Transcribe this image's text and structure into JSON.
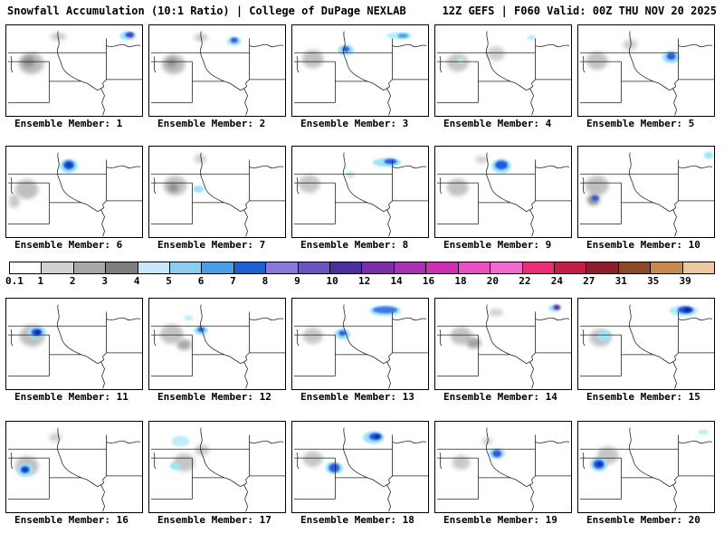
{
  "header": {
    "left": "Snowfall Accumulation (10:1 Ratio) | College of DuPage NEXLAB",
    "right": "12Z GEFS | F060 Valid: 00Z THU NOV 20 2025"
  },
  "colorbar": {
    "values": [
      "0.1",
      "1",
      "2",
      "3",
      "4",
      "5",
      "6",
      "7",
      "8",
      "9",
      "10",
      "12",
      "14",
      "16",
      "18",
      "20",
      "22",
      "24",
      "27",
      "31",
      "35",
      "39"
    ],
    "colors": [
      "#ffffff",
      "#d2d2d2",
      "#a8a8a8",
      "#7e7e7e",
      "#c8e8fa",
      "#8cccf0",
      "#4a9ee6",
      "#1e5fd2",
      "#8878d8",
      "#6a55c0",
      "#4b2f9e",
      "#7a2fa8",
      "#a832b4",
      "#cc2fb0",
      "#e84fc0",
      "#ef6ad0",
      "#e8307a",
      "#c21f48",
      "#8f1f2e",
      "#8a4a2a",
      "#c98a50",
      "#ecc9a0"
    ]
  },
  "panels": [
    {
      "label": "Ensemble Member: 1",
      "blobs": [
        [
          28,
          42,
          14,
          12,
          "#bcbcbc",
          "s"
        ],
        [
          25,
          40,
          7,
          6,
          "#8f8f8f",
          "s"
        ],
        [
          58,
          12,
          9,
          4,
          "#c8c8c8",
          "s"
        ],
        [
          136,
          11,
          9,
          5,
          "#9fe4f6",
          "t"
        ],
        [
          138,
          10,
          5,
          3,
          "#2e55e6",
          "t"
        ],
        [
          139,
          10,
          2.5,
          2,
          "#6d2fa8",
          "t"
        ]
      ]
    },
    {
      "label": "Ensemble Member: 2",
      "blobs": [
        [
          27,
          43,
          13,
          11,
          "#bcbcbc",
          "s"
        ],
        [
          25,
          41,
          6,
          5,
          "#909090",
          "s"
        ],
        [
          58,
          13,
          8,
          4,
          "#c8c8c8",
          "s"
        ],
        [
          95,
          17,
          8,
          5,
          "#9fe4f6",
          "t"
        ],
        [
          95,
          16,
          4,
          3,
          "#2e55e6",
          "t"
        ]
      ]
    },
    {
      "label": "Ensemble Member: 3",
      "blobs": [
        [
          23,
          37,
          12,
          10,
          "#c0c0c0",
          "s"
        ],
        [
          60,
          27,
          9,
          6,
          "#9fe4f6",
          "t"
        ],
        [
          60,
          26,
          4,
          3,
          "#2e55e6",
          "t"
        ],
        [
          120,
          11,
          14,
          4,
          "#b4ecf8",
          "t"
        ],
        [
          124,
          11,
          6,
          2.5,
          "#4a9ee6",
          "t"
        ]
      ]
    },
    {
      "label": "Ensemble Member: 4",
      "blobs": [
        [
          25,
          41,
          12,
          10,
          "#c6c6c6",
          "s"
        ],
        [
          68,
          31,
          10,
          8,
          "#cfcfcf",
          "s"
        ],
        [
          29,
          39,
          4,
          3,
          "#bdeef8",
          "t"
        ],
        [
          108,
          13,
          5,
          3,
          "#bdeef8",
          "t"
        ]
      ]
    },
    {
      "label": "Ensemble Member: 5",
      "blobs": [
        [
          21,
          39,
          12,
          10,
          "#c2c2c2",
          "s"
        ],
        [
          58,
          21,
          8,
          6,
          "#cfcfcf",
          "s"
        ],
        [
          104,
          35,
          10,
          7,
          "#9fe4f6",
          "t"
        ],
        [
          104,
          34,
          5,
          4,
          "#2e55e6",
          "t"
        ]
      ]
    },
    {
      "label": "Ensemble Member: 6",
      "blobs": [
        [
          23,
          47,
          13,
          11,
          "#c0c0c0",
          "s"
        ],
        [
          9,
          60,
          6,
          8,
          "#c9c9c9",
          "s"
        ],
        [
          70,
          21,
          10,
          8,
          "#9fe4f6",
          "t"
        ],
        [
          70,
          20,
          6,
          5,
          "#2456e0",
          "t"
        ],
        [
          70,
          20,
          3,
          2.5,
          "#1433a8",
          "t"
        ]
      ]
    },
    {
      "label": "Ensemble Member: 7",
      "blobs": [
        [
          29,
          43,
          13,
          11,
          "#c2c2c2",
          "s"
        ],
        [
          27,
          45,
          6,
          5,
          "#8f8f8f",
          "s"
        ],
        [
          57,
          13,
          7,
          5,
          "#cfcfcf",
          "s"
        ],
        [
          55,
          47,
          6,
          4,
          "#9fe4f6",
          "t"
        ]
      ]
    },
    {
      "label": "Ensemble Member: 8",
      "blobs": [
        [
          19,
          41,
          12,
          10,
          "#c6c6c6",
          "s"
        ],
        [
          65,
          31,
          5,
          4,
          "#bdeef8",
          "t"
        ],
        [
          106,
          17,
          16,
          5,
          "#9fe4f6",
          "t"
        ],
        [
          110,
          16,
          7,
          3,
          "#2e55e6",
          "t"
        ]
      ]
    },
    {
      "label": "Ensemble Member: 9",
      "blobs": [
        [
          25,
          45,
          12,
          10,
          "#c2c2c2",
          "s"
        ],
        [
          52,
          14,
          7,
          4,
          "#cfcfcf",
          "s"
        ],
        [
          74,
          21,
          11,
          8,
          "#9fe4f6",
          "t"
        ],
        [
          74,
          20,
          7,
          5,
          "#2456e0",
          "t"
        ]
      ]
    },
    {
      "label": "Ensemble Member: 10",
      "blobs": [
        [
          21,
          43,
          13,
          11,
          "#c0c0c0",
          "s"
        ],
        [
          17,
          59,
          7,
          6,
          "#909090",
          "s"
        ],
        [
          19,
          57,
          4,
          3,
          "#2e55e6",
          "t"
        ],
        [
          146,
          9,
          5,
          4,
          "#9fe4f6",
          "t"
        ]
      ]
    },
    {
      "label": "Ensemble Member: 11",
      "blobs": [
        [
          29,
          41,
          14,
          12,
          "#c0c0c0",
          "s"
        ],
        [
          34,
          37,
          10,
          7,
          "#9fe4f6",
          "t"
        ],
        [
          34,
          37,
          6,
          4,
          "#2456e0",
          "t"
        ],
        [
          35,
          37,
          3,
          2,
          "#141e96",
          "t"
        ]
      ]
    },
    {
      "label": "Ensemble Member: 12",
      "blobs": [
        [
          25,
          39,
          13,
          11,
          "#c4c4c4",
          "s"
        ],
        [
          39,
          51,
          8,
          6,
          "#a8a8a8",
          "s"
        ],
        [
          44,
          21,
          5,
          3,
          "#bdeef8",
          "t"
        ],
        [
          58,
          35,
          8,
          5,
          "#9fe4f6",
          "t"
        ],
        [
          58,
          34,
          4,
          2.5,
          "#2e55e6",
          "t"
        ]
      ]
    },
    {
      "label": "Ensemble Member: 13",
      "blobs": [
        [
          23,
          41,
          11,
          9,
          "#c6c6c6",
          "s"
        ],
        [
          56,
          39,
          9,
          6,
          "#9fe4f6",
          "t"
        ],
        [
          56,
          38,
          4,
          3,
          "#2e55e6",
          "t"
        ],
        [
          104,
          13,
          18,
          6,
          "#b4ecf8",
          "t"
        ],
        [
          104,
          12,
          14,
          4,
          "#3c78e8",
          "t"
        ]
      ]
    },
    {
      "label": "Ensemble Member: 14",
      "blobs": [
        [
          29,
          41,
          12,
          10,
          "#c2c2c2",
          "s"
        ],
        [
          43,
          49,
          8,
          6,
          "#a2a2a2",
          "s"
        ],
        [
          68,
          15,
          8,
          4,
          "#cfcfcf",
          "s"
        ],
        [
          134,
          10,
          7,
          4,
          "#9fe4f6",
          "t"
        ],
        [
          136,
          9,
          4,
          3,
          "#6d2fa8",
          "t"
        ]
      ]
    },
    {
      "label": "Ensemble Member: 15",
      "blobs": [
        [
          25,
          43,
          12,
          10,
          "#c4c4c4",
          "s"
        ],
        [
          29,
          41,
          8,
          6,
          "#9fe4f6",
          "t"
        ],
        [
          118,
          13,
          16,
          6,
          "#b4ecf8",
          "t"
        ],
        [
          120,
          12,
          9,
          4,
          "#2456e0",
          "t"
        ],
        [
          122,
          12,
          4,
          2.5,
          "#121ea0",
          "t"
        ]
      ]
    },
    {
      "label": "Ensemble Member: 16",
      "blobs": [
        [
          23,
          49,
          13,
          11,
          "#c0c0c0",
          "s"
        ],
        [
          55,
          17,
          7,
          5,
          "#cfcfcf",
          "s"
        ],
        [
          21,
          53,
          9,
          7,
          "#9fe4f6",
          "t"
        ],
        [
          21,
          53,
          5,
          4,
          "#2456e0",
          "t"
        ],
        [
          21,
          53,
          2.5,
          2,
          "#1433a8",
          "t"
        ]
      ]
    },
    {
      "label": "Ensemble Member: 17",
      "blobs": [
        [
          39,
          45,
          12,
          10,
          "#c6c6c6",
          "s"
        ],
        [
          59,
          31,
          8,
          6,
          "#cbcbcb",
          "s"
        ],
        [
          35,
          21,
          10,
          6,
          "#bdeef8",
          "t"
        ],
        [
          29,
          49,
          6,
          4,
          "#9fe4f6",
          "t"
        ]
      ]
    },
    {
      "label": "Ensemble Member: 18",
      "blobs": [
        [
          23,
          41,
          11,
          9,
          "#c8c8c8",
          "s"
        ],
        [
          47,
          51,
          10,
          7,
          "#9fe4f6",
          "t"
        ],
        [
          47,
          51,
          6,
          5,
          "#2e55e6",
          "t"
        ],
        [
          91,
          17,
          12,
          7,
          "#9fe4f6",
          "t"
        ],
        [
          93,
          16,
          7,
          4,
          "#2456e0",
          "t"
        ],
        [
          95,
          16,
          3,
          2,
          "#141e96",
          "t"
        ]
      ]
    },
    {
      "label": "Ensemble Member: 19",
      "blobs": [
        [
          29,
          45,
          10,
          8,
          "#c9c9c9",
          "s"
        ],
        [
          58,
          21,
          6,
          4,
          "#cfcfcf",
          "s"
        ],
        [
          69,
          35,
          9,
          6,
          "#9fe4f6",
          "t"
        ],
        [
          69,
          35,
          5,
          4,
          "#2e55e6",
          "t"
        ]
      ]
    },
    {
      "label": "Ensemble Member: 20",
      "blobs": [
        [
          33,
          37,
          12,
          10,
          "#c6c6c6",
          "s"
        ],
        [
          23,
          47,
          10,
          8,
          "#9fe4f6",
          "t"
        ],
        [
          23,
          47,
          6,
          5,
          "#2456e0",
          "t"
        ],
        [
          24,
          47,
          3,
          2,
          "#121ea0",
          "t"
        ],
        [
          140,
          11,
          6,
          3,
          "#bdeef8",
          "t"
        ]
      ]
    }
  ]
}
